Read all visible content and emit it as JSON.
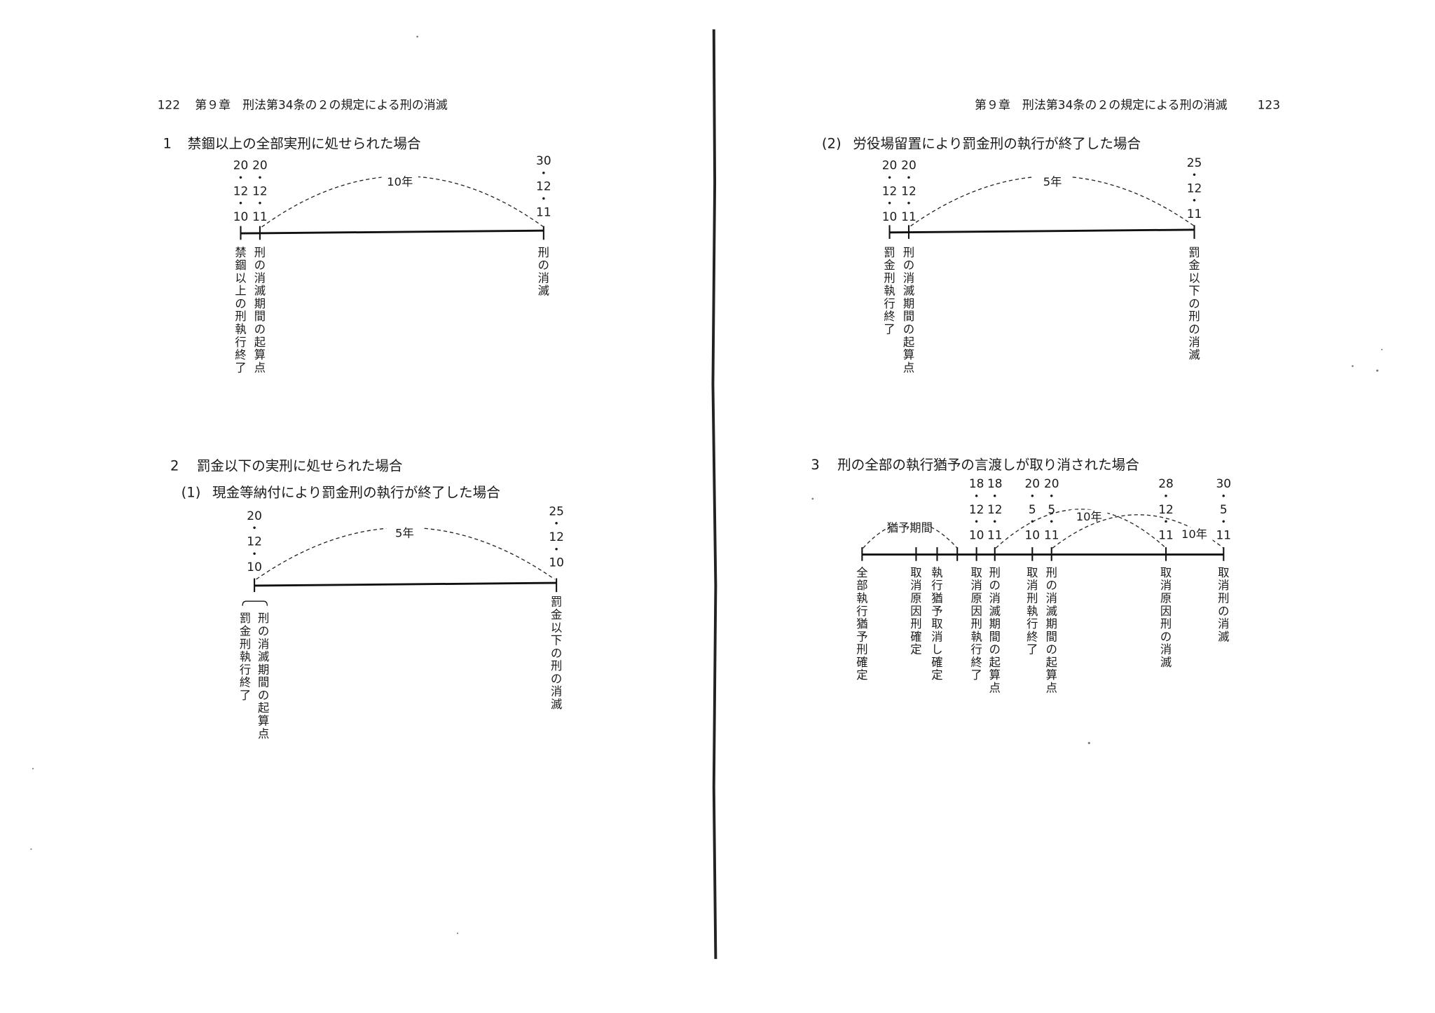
{
  "left_page": {
    "page_number": "122",
    "running_head": "第９章　刑法第34条の２の規定による刑の消滅",
    "section1": {
      "number": "1",
      "title": "禁錮以上の全部実刑に処せられた場合"
    },
    "section2": {
      "number": "2",
      "title": "罰金以下の実刑に処せられた場合"
    },
    "section2_1": {
      "number": "(1)",
      "title": "現金等納付により罰金刑の執行が終了した場合"
    }
  },
  "right_page": {
    "page_number": "123",
    "running_head": "第９章　刑法第34条の２の規定による刑の消滅",
    "section2_2": {
      "number": "(2)",
      "title": "労役場留置により罰金刑の執行が終了した場合"
    },
    "section3": {
      "number": "3",
      "title": "刑の全部の執行猶予の言渡しが取り消された場合"
    }
  },
  "diagrams": [
    {
      "points": [
        {
          "date": [
            "20",
            "12",
            "10"
          ],
          "label": "禁錮以上の刑執行終了"
        },
        {
          "date": [
            "20",
            "12",
            "11"
          ],
          "label": "刑の消滅期間の起算点"
        },
        {
          "date": [
            "30",
            "12",
            "11"
          ],
          "label": "刑の消滅"
        }
      ],
      "spans": [
        "10年"
      ]
    },
    {
      "points": [
        {
          "date": [
            "20",
            "12",
            "10"
          ],
          "label": "罰金刑執行終了"
        },
        {
          "date": [
            "20",
            "12",
            "11"
          ],
          "label": "刑の消滅期間の起算点"
        },
        {
          "date": [
            "25",
            "12",
            "11"
          ],
          "label": "罰金以下の刑の消滅"
        }
      ],
      "spans": [
        "5年"
      ]
    },
    {
      "points": [
        {
          "date": [
            "20",
            "12",
            "10"
          ],
          "label": "罰金刑執行終了"
        },
        {
          "date": [],
          "label": "刑の消滅期間の起算点"
        },
        {
          "date": [
            "25",
            "12",
            "10"
          ],
          "label": "罰金以下の刑の消滅"
        }
      ],
      "spans": [
        "5年"
      ]
    },
    {
      "points": [
        {
          "date": [],
          "label": "全部執行猶予刑確定"
        },
        {
          "date": [],
          "label": "取消原因刑確定"
        },
        {
          "date": [],
          "label": "執行猶予取消し確定"
        },
        {
          "date": [],
          "label": ""
        },
        {
          "date": [
            "18",
            "12",
            "10"
          ],
          "label": "取消原因刑執行終了"
        },
        {
          "date": [
            "18",
            "12",
            "11"
          ],
          "label": "刑の消滅期間の起算点"
        },
        {
          "date": [
            "20",
            "5",
            "10"
          ],
          "label": "取消刑執行終了"
        },
        {
          "date": [
            "20",
            "5",
            "11"
          ],
          "label": "刑の消滅期間の起算点"
        },
        {
          "date": [
            "28",
            "12",
            "11"
          ],
          "label": "取消原因刑の消滅"
        },
        {
          "date": [
            "30",
            "5",
            "11"
          ],
          "label": "取消刑の消滅"
        }
      ],
      "spans": [
        "猶予期間",
        "10年",
        "10年"
      ]
    }
  ],
  "date_separator": "・"
}
